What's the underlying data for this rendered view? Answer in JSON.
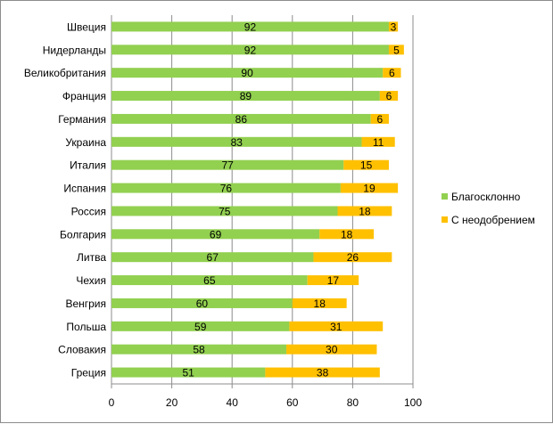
{
  "chart_data": {
    "type": "bar",
    "orientation": "horizontal",
    "stacked": true,
    "categories": [
      "Швеция",
      "Нидерланды",
      "Великобритания",
      "Франция",
      "Германия",
      "Украина",
      "Италия",
      "Испания",
      "Россия",
      "Болгария",
      "Литва",
      "Чехия",
      "Венгрия",
      "Польша",
      "Словакия",
      "Греция"
    ],
    "series": [
      {
        "name": "Благосклонно",
        "color": "#92d050",
        "values": [
          92,
          92,
          90,
          89,
          86,
          83,
          77,
          76,
          75,
          69,
          67,
          65,
          60,
          59,
          58,
          51
        ]
      },
      {
        "name": "С неодобрением",
        "color": "#ffc000",
        "values": [
          3,
          5,
          6,
          6,
          6,
          11,
          15,
          19,
          18,
          18,
          26,
          17,
          18,
          31,
          30,
          38
        ]
      }
    ],
    "xlim": [
      0,
      100
    ],
    "xticks": [
      0,
      20,
      40,
      60,
      80,
      100
    ],
    "grid": "vertical",
    "legend": "right",
    "title": "",
    "xlabel": "",
    "ylabel": ""
  }
}
